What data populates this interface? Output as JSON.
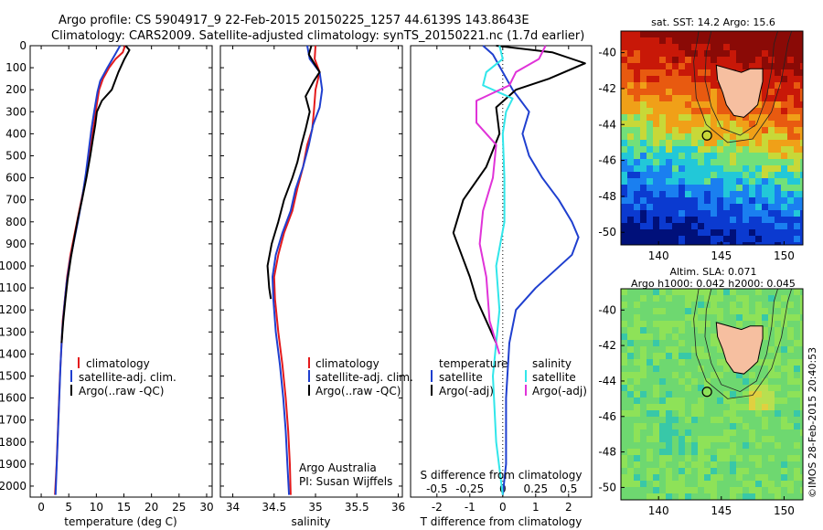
{
  "header": {
    "line1": "Argo profile: CS 5904917_9 22-Feb-2015 20150225_1257 44.6139S 143.8643E",
    "line2": "Climatology: CARS2009. Satellite-adjusted climatology: synTS_20150221.nc (1.7d earlier)"
  },
  "colors": {
    "climatology": "#e41a1c",
    "satellite": "#1f3fcf",
    "argo": "#000000",
    "sal_satellite": "#31e6ea",
    "sal_argo": "#e033d8"
  },
  "chart_data": [
    {
      "type": "line",
      "panel": "temperature",
      "xlabel": "temperature (deg C)",
      "xlim": [
        -2,
        31
      ],
      "xticks": [
        "0",
        "5",
        "10",
        "15",
        "20",
        "25",
        "30"
      ],
      "ylim": [
        0,
        2050
      ],
      "yticks": [
        "0",
        "100",
        "200",
        "300",
        "400",
        "500",
        "600",
        "700",
        "800",
        "900",
        "1000",
        "1100",
        "1200",
        "1300",
        "1400",
        "1500",
        "1600",
        "1700",
        "1800",
        "1900",
        "2000"
      ],
      "legend": [
        "climatology",
        "satellite-adj. clim.",
        "Argo(..raw -QC)"
      ],
      "series": [
        {
          "name": "climatology",
          "color": "#e41a1c",
          "points": [
            [
              15.2,
              0
            ],
            [
              14.8,
              30
            ],
            [
              13.5,
              60
            ],
            [
              12.3,
              100
            ],
            [
              11.2,
              150
            ],
            [
              10.5,
              200
            ],
            [
              10.0,
              280
            ],
            [
              9.6,
              350
            ],
            [
              9.0,
              450
            ],
            [
              8.4,
              550
            ],
            [
              7.7,
              650
            ],
            [
              6.9,
              750
            ],
            [
              6.1,
              850
            ],
            [
              5.3,
              950
            ],
            [
              4.7,
              1050
            ],
            [
              4.3,
              1150
            ],
            [
              3.9,
              1250
            ],
            [
              3.7,
              1350
            ],
            [
              3.4,
              1500
            ],
            [
              3.1,
              1700
            ],
            [
              2.8,
              1900
            ],
            [
              2.5,
              2040
            ]
          ]
        },
        {
          "name": "satellite-adj. clim.",
          "color": "#1f3fcf",
          "points": [
            [
              14.3,
              0
            ],
            [
              13.4,
              40
            ],
            [
              12.0,
              100
            ],
            [
              10.7,
              160
            ],
            [
              10.2,
              210
            ],
            [
              9.6,
              300
            ],
            [
              9.1,
              380
            ],
            [
              8.6,
              480
            ],
            [
              8.1,
              580
            ],
            [
              7.5,
              680
            ],
            [
              6.8,
              780
            ],
            [
              6.0,
              880
            ],
            [
              5.2,
              980
            ],
            [
              4.6,
              1080
            ],
            [
              4.2,
              1180
            ],
            [
              3.8,
              1300
            ],
            [
              3.5,
              1450
            ],
            [
              3.2,
              1650
            ],
            [
              2.9,
              1850
            ],
            [
              2.6,
              2040
            ]
          ]
        },
        {
          "name": "Argo(..raw -QC)",
          "color": "#000000",
          "points": [
            [
              15.3,
              0
            ],
            [
              16.0,
              20
            ],
            [
              15.1,
              60
            ],
            [
              14.0,
              120
            ],
            [
              12.8,
              200
            ],
            [
              11.0,
              250
            ],
            [
              10.1,
              300
            ],
            [
              9.8,
              360
            ],
            [
              9.4,
              420
            ],
            [
              8.9,
              500
            ],
            [
              8.2,
              600
            ],
            [
              7.4,
              700
            ],
            [
              6.7,
              780
            ],
            [
              6.1,
              860
            ],
            [
              5.4,
              960
            ],
            [
              4.8,
              1060
            ],
            [
              4.4,
              1150
            ],
            [
              4.0,
              1250
            ],
            [
              3.7,
              1350
            ]
          ]
        }
      ]
    },
    {
      "type": "line",
      "panel": "salinity",
      "xlabel": "salinity",
      "xlim": [
        33.85,
        36.05
      ],
      "xticks": [
        "34",
        "34.5",
        "35",
        "35.5",
        "36"
      ],
      "ylim": [
        0,
        2050
      ],
      "legend": [
        "climatology",
        "satellite-adj. clim.",
        "Argo(..raw -QC)"
      ],
      "annotation": [
        "Argo Australia",
        "PI: Susan Wijffels"
      ],
      "series": [
        {
          "name": "climatology",
          "color": "#e41a1c",
          "points": [
            [
              35.0,
              0
            ],
            [
              34.99,
              60
            ],
            [
              35.05,
              120
            ],
            [
              35.0,
              200
            ],
            [
              34.98,
              300
            ],
            [
              34.96,
              380
            ],
            [
              34.9,
              450
            ],
            [
              34.85,
              550
            ],
            [
              34.78,
              650
            ],
            [
              34.72,
              750
            ],
            [
              34.62,
              850
            ],
            [
              34.55,
              950
            ],
            [
              34.5,
              1050
            ],
            [
              34.51,
              1150
            ],
            [
              34.55,
              1300
            ],
            [
              34.6,
              1450
            ],
            [
              34.64,
              1600
            ],
            [
              34.67,
              1750
            ],
            [
              34.69,
              1900
            ],
            [
              34.7,
              2040
            ]
          ]
        },
        {
          "name": "satellite-adj. clim.",
          "color": "#1f3fcf",
          "points": [
            [
              34.9,
              0
            ],
            [
              34.93,
              60
            ],
            [
              35.05,
              120
            ],
            [
              35.08,
              200
            ],
            [
              35.05,
              280
            ],
            [
              34.97,
              360
            ],
            [
              34.92,
              450
            ],
            [
              34.85,
              550
            ],
            [
              34.76,
              650
            ],
            [
              34.7,
              750
            ],
            [
              34.6,
              850
            ],
            [
              34.52,
              950
            ],
            [
              34.48,
              1050
            ],
            [
              34.49,
              1150
            ],
            [
              34.52,
              1300
            ],
            [
              34.57,
              1450
            ],
            [
              34.61,
              1600
            ],
            [
              34.64,
              1750
            ],
            [
              34.66,
              1900
            ],
            [
              34.68,
              2040
            ]
          ]
        },
        {
          "name": "Argo(..raw -QC)",
          "color": "#000000",
          "points": [
            [
              34.95,
              0
            ],
            [
              34.92,
              40
            ],
            [
              35.0,
              90
            ],
            [
              35.05,
              120
            ],
            [
              34.98,
              160
            ],
            [
              34.88,
              230
            ],
            [
              34.93,
              300
            ],
            [
              34.88,
              380
            ],
            [
              34.83,
              450
            ],
            [
              34.78,
              530
            ],
            [
              34.72,
              600
            ],
            [
              34.62,
              700
            ],
            [
              34.55,
              800
            ],
            [
              34.47,
              900
            ],
            [
              34.42,
              1000
            ],
            [
              34.44,
              1100
            ],
            [
              34.46,
              1150
            ]
          ]
        }
      ]
    },
    {
      "type": "line",
      "panel": "difference",
      "xlabel": "T difference from climatology",
      "xlabel2": "S difference from climatology",
      "xlim": [
        -2.8,
        2.7
      ],
      "xticks": [
        "-2",
        "-1",
        "0",
        "1",
        "2"
      ],
      "xticks_top": [
        "-0.5",
        "-0.25",
        "0",
        "0.25",
        "0.5"
      ],
      "legend_titles": [
        "temperature",
        "salinity"
      ],
      "legend": [
        "satellite",
        "Argo(-adj)",
        "satellite",
        "Argo(-adj)"
      ],
      "series": [
        {
          "name": "satellite",
          "color": "#1f3fcf",
          "points": [
            [
              -0.6,
              0
            ],
            [
              -0.3,
              40
            ],
            [
              0.3,
              200
            ],
            [
              0.8,
              300
            ],
            [
              0.6,
              400
            ],
            [
              0.8,
              500
            ],
            [
              1.2,
              600
            ],
            [
              1.7,
              700
            ],
            [
              2.1,
              800
            ],
            [
              2.3,
              870
            ],
            [
              2.1,
              950
            ],
            [
              1.0,
              1100
            ],
            [
              0.4,
              1200
            ],
            [
              0.2,
              1350
            ],
            [
              0.1,
              1600
            ],
            [
              0.1,
              1900
            ],
            [
              0.0,
              2040
            ]
          ]
        },
        {
          "name": "Argo(-adj)",
          "color": "#000000",
          "points": [
            [
              -0.2,
              0
            ],
            [
              1.5,
              30
            ],
            [
              2.5,
              80
            ],
            [
              1.4,
              150
            ],
            [
              0.4,
              200
            ],
            [
              -0.2,
              280
            ],
            [
              -0.1,
              400
            ],
            [
              -0.5,
              550
            ],
            [
              -1.2,
              700
            ],
            [
              -1.5,
              850
            ],
            [
              -1.0,
              1050
            ],
            [
              -0.8,
              1150
            ],
            [
              -0.5,
              1250
            ],
            [
              -0.2,
              1350
            ]
          ]
        },
        {
          "name": "satellite",
          "color": "#31e6ea",
          "points": [
            [
              -0.1,
              0
            ],
            [
              0.0,
              60
            ],
            [
              -0.5,
              120
            ],
            [
              -0.6,
              180
            ],
            [
              0.3,
              240
            ],
            [
              0.1,
              300
            ],
            [
              0.0,
              400
            ],
            [
              0.05,
              600
            ],
            [
              0.05,
              800
            ],
            [
              -0.2,
              1000
            ],
            [
              -0.1,
              1200
            ],
            [
              -0.3,
              1500
            ],
            [
              -0.2,
              1800
            ],
            [
              0.0,
              2040
            ]
          ]
        },
        {
          "name": "Argo(-adj)",
          "color": "#e033d8",
          "points": [
            [
              1.3,
              0
            ],
            [
              1.1,
              60
            ],
            [
              0.4,
              120
            ],
            [
              0.2,
              180
            ],
            [
              -0.8,
              250
            ],
            [
              -0.8,
              350
            ],
            [
              -0.2,
              450
            ],
            [
              -0.3,
              600
            ],
            [
              -0.6,
              750
            ],
            [
              -0.7,
              900
            ],
            [
              -0.5,
              1050
            ],
            [
              -0.4,
              1250
            ],
            [
              -0.1,
              1400
            ]
          ]
        }
      ]
    },
    {
      "type": "heatmap",
      "panel": "sst_map",
      "title": "sat. SST: 14.2  Argo: 15.6",
      "xticks": [
        "140",
        "145",
        "150"
      ],
      "yticks": [
        "-40",
        "-42",
        "-44",
        "-46",
        "-48",
        "-50"
      ],
      "xlim": [
        137,
        151.5
      ],
      "ylim": [
        -50.7,
        -38.8
      ],
      "marker": {
        "lon": 143.86,
        "lat": -44.61
      }
    },
    {
      "type": "heatmap",
      "panel": "sla_map",
      "title": "Altim. SLA: 0.071",
      "subtitle": "Argo h1000: 0.042  h2000: 0.045",
      "xticks": [
        "140",
        "145",
        "150"
      ],
      "yticks": [
        "-40",
        "-42",
        "-44",
        "-46",
        "-48",
        "-50"
      ],
      "xlim": [
        137,
        151.5
      ],
      "ylim": [
        -50.7,
        -38.8
      ],
      "marker": {
        "lon": 143.86,
        "lat": -44.61
      }
    }
  ],
  "credit": "©IMOS 28-Feb-2015 20:40:53"
}
